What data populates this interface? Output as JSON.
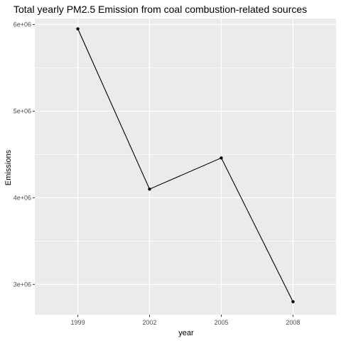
{
  "chart_data": {
    "type": "line",
    "title": "Total yearly PM2.5 Emission from coal combustion-related sources",
    "xlabel": "year",
    "ylabel": "Emissions",
    "x": [
      "1999",
      "2002",
      "2005",
      "2008"
    ],
    "y": [
      5950000,
      4100000,
      4460000,
      2800000
    ],
    "y_ticks": [
      3000000,
      4000000,
      5000000,
      6000000
    ],
    "y_tick_labels": [
      "3e+06",
      "4e+06",
      "5e+06",
      "6e+06"
    ],
    "ylim": [
      2650000,
      6070000
    ],
    "grid": true,
    "colors": {
      "panel": "#ebebeb",
      "grid": "#ffffff",
      "line": "#000000"
    }
  }
}
